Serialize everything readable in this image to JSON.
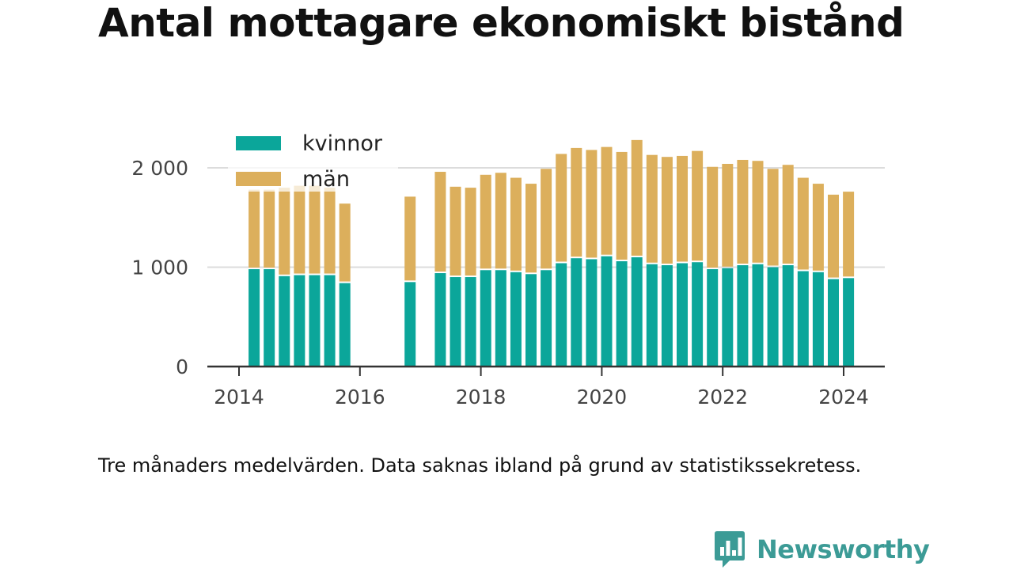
{
  "title": "Antal mottagare ekonomiskt bistånd",
  "note": "Tre månaders medelvärden. Data saknas ibland på grund av statistikssekretess.",
  "brand": {
    "name": "Newsworthy",
    "logo_icon": "bar-chart-speech-bubble-icon"
  },
  "colors": {
    "kvinnor": "#0ba69a",
    "man": "#dcaf5c",
    "axis": "#333333",
    "grid": "#dcdcdc",
    "brand": "#3c9b96"
  },
  "chart_data": {
    "type": "bar",
    "stacked": true,
    "xlabel": "",
    "ylabel": "",
    "ylim": [
      0,
      2300
    ],
    "yticks": [
      0,
      1000,
      2000
    ],
    "ytick_labels": [
      "0",
      "1 000",
      "2 000"
    ],
    "xticks": [
      2014,
      2016,
      2018,
      2020,
      2022,
      2024
    ],
    "xlim": [
      2013.6,
      2024.35
    ],
    "grid": true,
    "legend_position": "top-left",
    "x": [
      2014.25,
      2014.5,
      2014.75,
      2015.0,
      2015.25,
      2015.5,
      2015.75,
      2016.83,
      2017.33,
      2017.58,
      2017.83,
      2018.08,
      2018.33,
      2018.58,
      2018.83,
      2019.08,
      2019.33,
      2019.58,
      2019.83,
      2020.08,
      2020.33,
      2020.58,
      2020.83,
      2021.08,
      2021.33,
      2021.58,
      2021.83,
      2022.08,
      2022.33,
      2022.58,
      2022.83,
      2023.08,
      2023.33,
      2023.58,
      2023.83,
      2024.08
    ],
    "series": [
      {
        "name": "kvinnor",
        "values": [
          980,
          980,
          910,
          920,
          920,
          920,
          840,
          850,
          940,
          900,
          900,
          970,
          970,
          950,
          930,
          970,
          1040,
          1090,
          1080,
          1110,
          1060,
          1100,
          1030,
          1020,
          1040,
          1050,
          980,
          990,
          1020,
          1030,
          1000,
          1020,
          960,
          950,
          880,
          890
        ]
      },
      {
        "name": "män",
        "values": [
          800,
          800,
          890,
          900,
          900,
          880,
          800,
          860,
          1020,
          910,
          900,
          960,
          980,
          950,
          910,
          1020,
          1100,
          1110,
          1100,
          1100,
          1100,
          1180,
          1100,
          1090,
          1080,
          1120,
          1030,
          1050,
          1060,
          1040,
          990,
          1010,
          940,
          890,
          850,
          870
        ]
      }
    ]
  }
}
